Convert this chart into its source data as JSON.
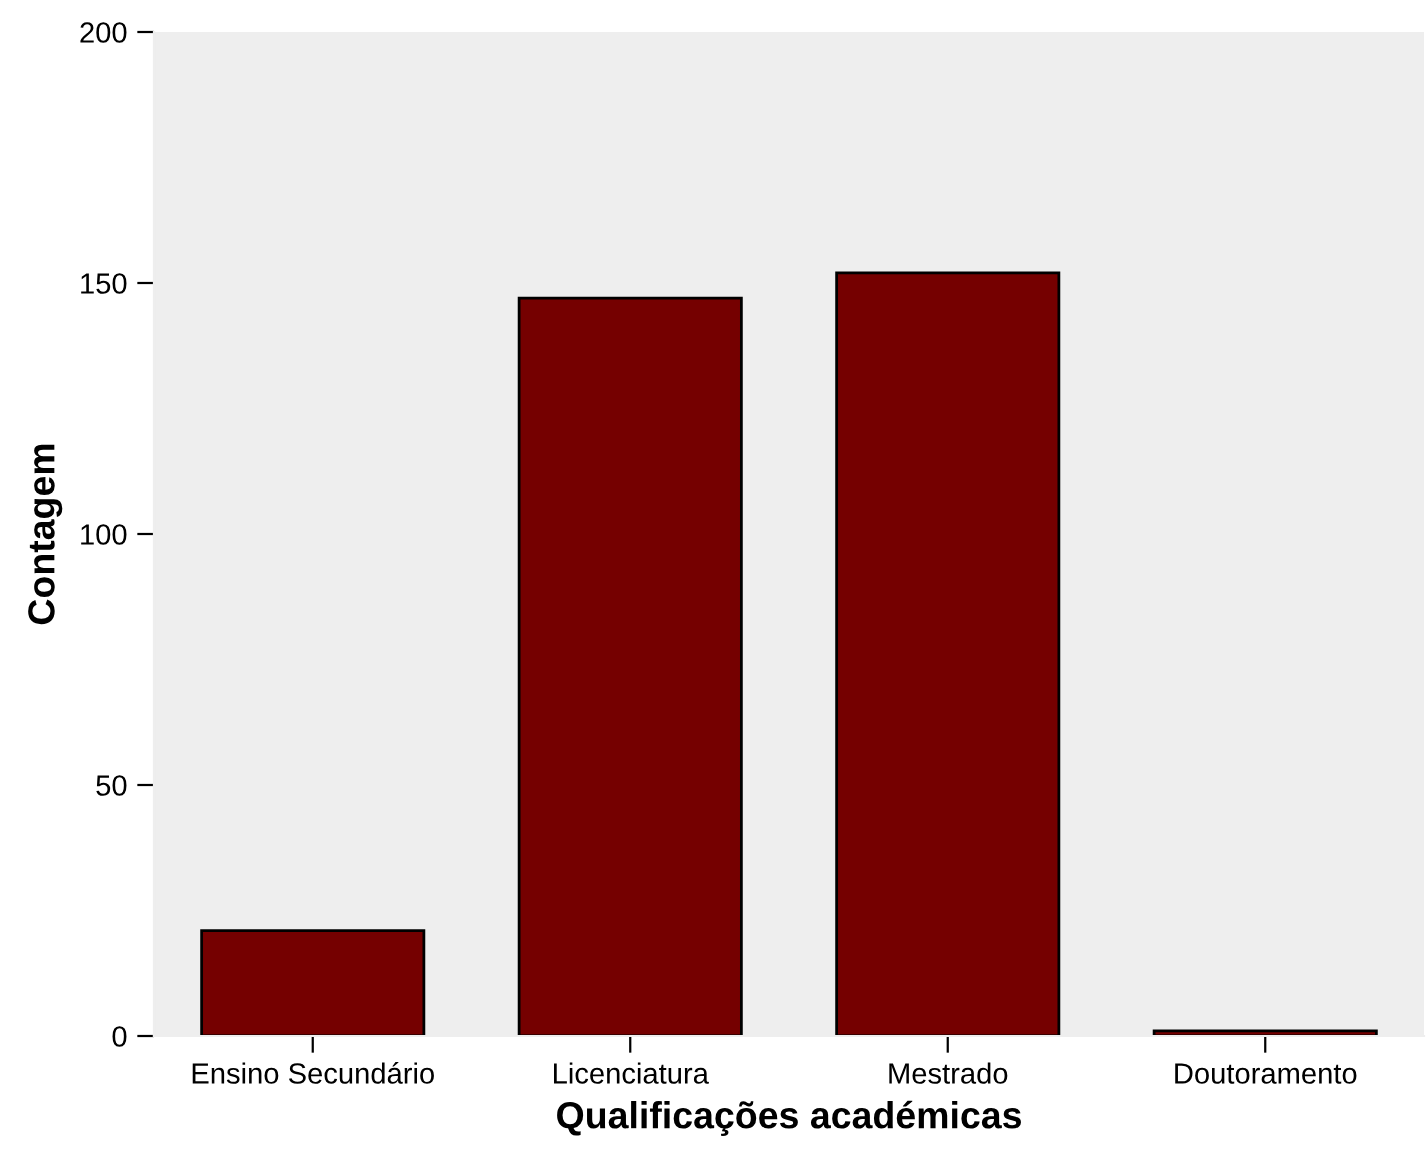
{
  "chart_data": {
    "type": "bar",
    "xlabel": "Qualificações académicas",
    "ylabel": "Contagem",
    "categories": [
      "Ensino Secundário",
      "Licenciatura",
      "Mestrado",
      "Doutoramento"
    ],
    "values": [
      21,
      147,
      152,
      1
    ],
    "color": "#750000",
    "ylim": [
      0,
      200
    ],
    "yticks": [
      0,
      50,
      100,
      150,
      200
    ],
    "grid": false
  }
}
